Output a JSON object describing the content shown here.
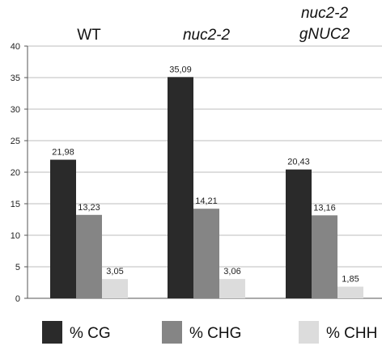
{
  "chart_data": {
    "type": "bar",
    "categories": [
      {
        "label_lines": [
          "WT"
        ],
        "italic": false
      },
      {
        "label_lines": [
          "nuc2-2"
        ],
        "italic": true
      },
      {
        "label_lines": [
          "nuc2-2",
          "gNUC2"
        ],
        "italic": true
      }
    ],
    "series": [
      {
        "name": "% CG",
        "color": "#2a2a2a",
        "values": [
          21.98,
          35.09,
          20.43
        ],
        "labels": [
          "21,98",
          "35,09",
          "20,43"
        ]
      },
      {
        "name": "% CHG",
        "color": "#858585",
        "values": [
          13.23,
          14.21,
          13.16
        ],
        "labels": [
          "13,23",
          "14,21",
          "13,16"
        ]
      },
      {
        "name": "% CHH",
        "color": "#dcdcdc",
        "values": [
          3.05,
          3.06,
          1.85
        ],
        "labels": [
          "3,05",
          "3,06",
          "1,85"
        ]
      }
    ],
    "ylim": [
      0,
      40
    ],
    "yticks": [
      0,
      5,
      10,
      15,
      20,
      25,
      30,
      35,
      40
    ],
    "grid": true,
    "legend_position": "bottom"
  }
}
